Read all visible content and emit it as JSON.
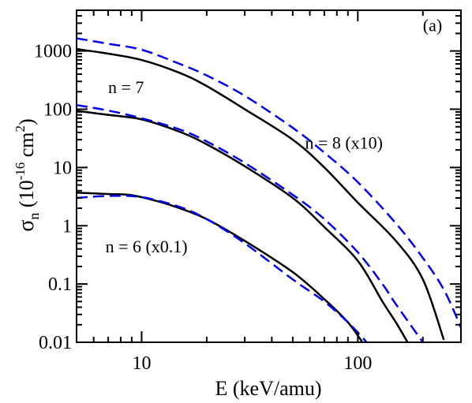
{
  "chart_data": {
    "type": "line",
    "title": "",
    "xlabel": "E (keV/amu)",
    "ylabel": {
      "sigma": "σ",
      "subscript": "n",
      "open": " (10",
      "exponent": "-16",
      "unit": " cm",
      "unit_exponent": "2",
      "close": ")"
    },
    "x_scale": "log",
    "y_scale": "log",
    "xlim": [
      5,
      300
    ],
    "ylim": [
      0.01,
      5000
    ],
    "x_ticks": [
      {
        "value": 10,
        "label": "10"
      },
      {
        "value": 100,
        "label": "100"
      }
    ],
    "y_ticks": [
      {
        "value": 0.01,
        "label": "0.01"
      },
      {
        "value": 0.1,
        "label": "0.1"
      },
      {
        "value": 1,
        "label": "1"
      },
      {
        "value": 10,
        "label": "10"
      },
      {
        "value": 100,
        "label": "100"
      },
      {
        "value": 1000,
        "label": "1000"
      }
    ],
    "grid": false,
    "annotations": [
      {
        "text": "(a)",
        "x": 200,
        "y": 2200
      },
      {
        "text": "n = 7",
        "x": 7.0,
        "y": 190
      },
      {
        "text": "n = 8 (x10)",
        "x": 57,
        "y": 21
      },
      {
        "text": "n = 6 (x0.1)",
        "x": 6.8,
        "y": 0.35
      }
    ],
    "series": [
      {
        "style": "solid",
        "color": "#000000",
        "points": [
          [
            5,
            1080
          ],
          [
            7,
            900
          ],
          [
            10,
            700
          ],
          [
            15,
            420
          ],
          [
            20,
            250
          ],
          [
            30,
            100
          ],
          [
            50,
            30
          ],
          [
            70,
            10
          ],
          [
            100,
            2.5
          ],
          [
            150,
            0.55
          ],
          [
            200,
            0.12
          ],
          [
            250,
            0.011
          ]
        ]
      },
      {
        "style": "dashed",
        "color": "#0000ee",
        "points": [
          [
            5,
            1650
          ],
          [
            7,
            1330
          ],
          [
            10,
            1050
          ],
          [
            15,
            600
          ],
          [
            20,
            380
          ],
          [
            30,
            170
          ],
          [
            50,
            48
          ],
          [
            70,
            18
          ],
          [
            100,
            5.6
          ],
          [
            150,
            1.1
          ],
          [
            200,
            0.28
          ],
          [
            250,
            0.08
          ],
          [
            300,
            0.018
          ]
        ]
      },
      {
        "style": "solid",
        "color": "#000000",
        "points": [
          [
            5,
            94
          ],
          [
            7,
            80
          ],
          [
            10,
            67
          ],
          [
            15,
            41
          ],
          [
            20,
            25
          ],
          [
            30,
            10.5
          ],
          [
            50,
            3.0
          ],
          [
            70,
            0.95
          ],
          [
            100,
            0.25
          ],
          [
            130,
            0.05
          ],
          [
            150,
            0.022
          ],
          [
            170,
            0.01
          ]
        ]
      },
      {
        "style": "dashed",
        "color": "#0000ee",
        "points": [
          [
            5,
            118
          ],
          [
            7,
            95
          ],
          [
            10,
            70
          ],
          [
            15,
            45
          ],
          [
            20,
            28
          ],
          [
            30,
            12
          ],
          [
            50,
            3.4
          ],
          [
            70,
            1.3
          ],
          [
            100,
            0.35
          ],
          [
            130,
            0.1
          ],
          [
            150,
            0.045
          ],
          [
            200,
            0.01
          ]
        ]
      },
      {
        "style": "solid",
        "color": "#000000",
        "points": [
          [
            5,
            3.7
          ],
          [
            7,
            3.5
          ],
          [
            9,
            3.35
          ],
          [
            12,
            2.6
          ],
          [
            15,
            2.0
          ],
          [
            20,
            1.3
          ],
          [
            30,
            0.55
          ],
          [
            50,
            0.16
          ],
          [
            70,
            0.055
          ],
          [
            90,
            0.022
          ],
          [
            105,
            0.01
          ]
        ]
      },
      {
        "style": "dashed",
        "color": "#0000ee",
        "points": [
          [
            5,
            3.0
          ],
          [
            7,
            3.25
          ],
          [
            10,
            3.1
          ],
          [
            15,
            2.1
          ],
          [
            20,
            1.3
          ],
          [
            30,
            0.5
          ],
          [
            50,
            0.12
          ],
          [
            70,
            0.05
          ],
          [
            90,
            0.022
          ],
          [
            110,
            0.01
          ]
        ]
      }
    ]
  }
}
